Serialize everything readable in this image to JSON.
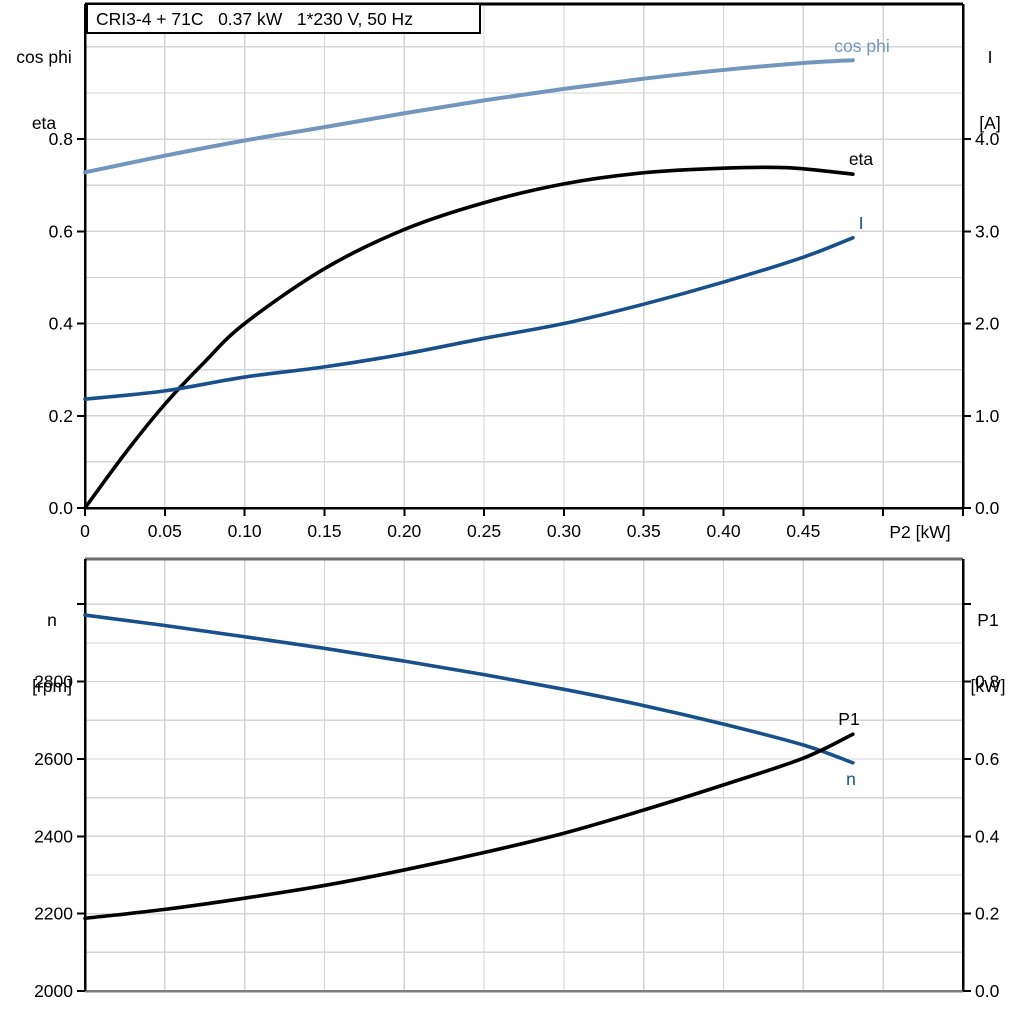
{
  "title_box": {
    "text": "CRI3-4 + 71C   0.37 kW   1*230 V, 50 Hz"
  },
  "colors": {
    "curve_light_blue": "#7296BE",
    "curve_dark_blue": "#17508B",
    "curve_black": "#000000",
    "grid": "#D4D6D6",
    "frame_top_gray": "#6E6E6E",
    "frame_bottom_gray": "#7D7D7D",
    "axis_black": "#000000",
    "text": "#000000"
  },
  "axis_titles": {
    "top_left_line1": "cos phi",
    "top_left_line2": "eta",
    "top_right_line1": "I",
    "top_right_line2": "[A]",
    "top_x": "P2 [kW]",
    "bottom_left_line1": "n",
    "bottom_left_line2": "[rpm]",
    "bottom_right_line1": "P1",
    "bottom_right_line2": "[kW]"
  },
  "curve_labels": {
    "cos_phi": "cos phi",
    "eta": "eta",
    "current": "I",
    "p1": "P1",
    "n": "n"
  },
  "chart_data": [
    {
      "id": "top",
      "type": "line",
      "title": "CRI3-4 + 71C   0.37 kW   1*230 V, 50 Hz",
      "xlabel": "P2 [kW]",
      "ylabel_left": "cos phi / eta",
      "ylabel_right": "I [A]",
      "grid": true,
      "legend_position": "inline-end-of-curve",
      "xlim": [
        0,
        0.55
      ],
      "ylim_left": [
        0,
        1.093
      ],
      "ylim_right": [
        0,
        5.465
      ],
      "x_grid": [
        0.05,
        0.1,
        0.15,
        0.2,
        0.25,
        0.3,
        0.35,
        0.4,
        0.45,
        0.5
      ],
      "y_grid_left": [
        0.1,
        0.2,
        0.3,
        0.4,
        0.5,
        0.6,
        0.7,
        0.8,
        0.9,
        1.0
      ],
      "x_ticks": [
        {
          "v": 0,
          "label": "0"
        },
        {
          "v": 0.05,
          "label": "0.05"
        },
        {
          "v": 0.1,
          "label": "0.10"
        },
        {
          "v": 0.15,
          "label": "0.15"
        },
        {
          "v": 0.2,
          "label": "0.20"
        },
        {
          "v": 0.25,
          "label": "0.25"
        },
        {
          "v": 0.3,
          "label": "0.30"
        },
        {
          "v": 0.35,
          "label": "0.35"
        },
        {
          "v": 0.4,
          "label": "0.40"
        },
        {
          "v": 0.45,
          "label": "0.45"
        },
        {
          "v": 0.5,
          "label": ""
        },
        {
          "v": 0.55,
          "label": ""
        }
      ],
      "y_ticks_left": [
        {
          "v": 0.0,
          "label": "0.0"
        },
        {
          "v": 0.2,
          "label": "0.2"
        },
        {
          "v": 0.4,
          "label": "0.4"
        },
        {
          "v": 0.6,
          "label": "0.6"
        },
        {
          "v": 0.8,
          "label": "0.8"
        }
      ],
      "y_ticks_right": [
        {
          "v": 0.0,
          "label": "0.0"
        },
        {
          "v": 1.0,
          "label": "1.0"
        },
        {
          "v": 2.0,
          "label": "2.0"
        },
        {
          "v": 3.0,
          "label": "3.0"
        },
        {
          "v": 4.0,
          "label": "4.0"
        }
      ],
      "series": [
        {
          "name": "cos phi",
          "axis": "left",
          "color": "#7296BE",
          "width": 4,
          "points": [
            [
              0,
              0.728
            ],
            [
              0.05,
              0.764
            ],
            [
              0.1,
              0.797
            ],
            [
              0.15,
              0.826
            ],
            [
              0.2,
              0.856
            ],
            [
              0.25,
              0.884
            ],
            [
              0.3,
              0.909
            ],
            [
              0.35,
              0.931
            ],
            [
              0.4,
              0.95
            ],
            [
              0.45,
              0.965
            ],
            [
              0.481,
              0.971
            ]
          ]
        },
        {
          "name": "eta",
          "axis": "left",
          "color": "#000000",
          "width": 3.6,
          "points": [
            [
              0,
              0
            ],
            [
              0.025,
              0.118
            ],
            [
              0.05,
              0.225
            ],
            [
              0.075,
              0.317
            ],
            [
              0.1,
              0.4
            ],
            [
              0.15,
              0.519
            ],
            [
              0.2,
              0.604
            ],
            [
              0.25,
              0.662
            ],
            [
              0.3,
              0.703
            ],
            [
              0.35,
              0.727
            ],
            [
              0.4,
              0.737
            ],
            [
              0.44,
              0.738
            ],
            [
              0.481,
              0.724
            ]
          ]
        },
        {
          "name": "I",
          "axis": "right",
          "color": "#17508B",
          "width": 3.6,
          "points": [
            [
              0,
              1.18
            ],
            [
              0.05,
              1.27
            ],
            [
              0.1,
              1.42
            ],
            [
              0.15,
              1.53
            ],
            [
              0.2,
              1.67
            ],
            [
              0.25,
              1.84
            ],
            [
              0.3,
              2.0
            ],
            [
              0.35,
              2.21
            ],
            [
              0.4,
              2.45
            ],
            [
              0.45,
              2.72
            ],
            [
              0.481,
              2.93
            ]
          ]
        }
      ]
    },
    {
      "id": "bottom",
      "type": "line",
      "title": "",
      "xlabel": "",
      "ylabel_left": "n [rpm]",
      "ylabel_right": "P1 [kW]",
      "grid": true,
      "legend_position": "inline-end-of-curve",
      "xlim": [
        0,
        0.55
      ],
      "ylim_left": [
        2000,
        3117
      ],
      "ylim_right": [
        0,
        1.117
      ],
      "x_grid": [
        0.05,
        0.1,
        0.15,
        0.2,
        0.25,
        0.3,
        0.35,
        0.4,
        0.45,
        0.5
      ],
      "y_grid_left": [
        2100,
        2200,
        2300,
        2400,
        2500,
        2600,
        2700,
        2800,
        2900,
        3000
      ],
      "x_ticks": [],
      "y_ticks_left": [
        {
          "v": 2000,
          "label": "2000"
        },
        {
          "v": 2200,
          "label": "2200"
        },
        {
          "v": 2400,
          "label": "2400"
        },
        {
          "v": 2600,
          "label": "2600"
        },
        {
          "v": 2800,
          "label": "2800"
        },
        {
          "v": 3000,
          "label": ""
        }
      ],
      "y_ticks_right": [
        {
          "v": 0.0,
          "label": "0.0"
        },
        {
          "v": 0.2,
          "label": "0.2"
        },
        {
          "v": 0.4,
          "label": "0.4"
        },
        {
          "v": 0.6,
          "label": "0.6"
        },
        {
          "v": 0.8,
          "label": "0.8"
        },
        {
          "v": 1.0,
          "label": ""
        }
      ],
      "series": [
        {
          "name": "n",
          "axis": "left",
          "color": "#17508B",
          "width": 3.6,
          "points": [
            [
              0,
              2972
            ],
            [
              0.05,
              2945
            ],
            [
              0.1,
              2916
            ],
            [
              0.15,
              2886
            ],
            [
              0.2,
              2853
            ],
            [
              0.25,
              2818
            ],
            [
              0.3,
              2780
            ],
            [
              0.35,
              2738
            ],
            [
              0.4,
              2690
            ],
            [
              0.45,
              2636
            ],
            [
              0.481,
              2590
            ]
          ]
        },
        {
          "name": "P1",
          "axis": "right",
          "color": "#000000",
          "width": 3.6,
          "points": [
            [
              0,
              0.188
            ],
            [
              0.05,
              0.211
            ],
            [
              0.1,
              0.24
            ],
            [
              0.15,
              0.273
            ],
            [
              0.2,
              0.313
            ],
            [
              0.25,
              0.358
            ],
            [
              0.3,
              0.408
            ],
            [
              0.35,
              0.468
            ],
            [
              0.4,
              0.533
            ],
            [
              0.45,
              0.602
            ],
            [
              0.481,
              0.664
            ]
          ]
        }
      ]
    }
  ]
}
